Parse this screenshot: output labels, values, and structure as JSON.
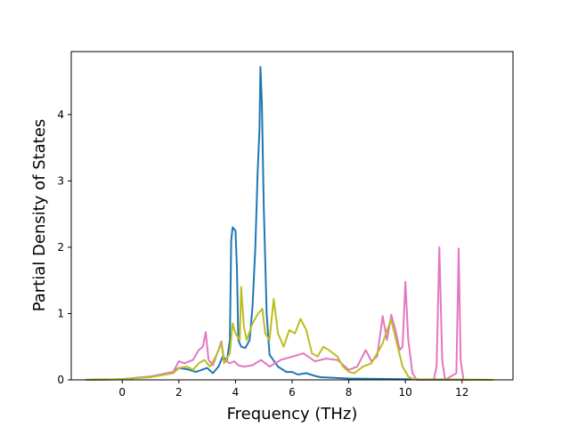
{
  "chart_data": {
    "type": "line",
    "title": "",
    "xlabel": "Frequency (THz)",
    "ylabel": "Partial Density of States",
    "xlim": [
      -1.8,
      13.8
    ],
    "ylim": [
      0,
      4.95
    ],
    "xticks": [
      0,
      2,
      4,
      6,
      8,
      10,
      12
    ],
    "yticks": [
      0,
      1,
      2,
      3,
      4
    ],
    "grid": false,
    "legend": "none",
    "series": [
      {
        "color": "#1f77b4",
        "points": [
          [
            -1.3,
            0
          ],
          [
            0,
            0.01
          ],
          [
            1,
            0.05
          ],
          [
            1.8,
            0.12
          ],
          [
            2.0,
            0.18
          ],
          [
            2.3,
            0.16
          ],
          [
            2.6,
            0.12
          ],
          [
            2.8,
            0.15
          ],
          [
            3.0,
            0.18
          ],
          [
            3.2,
            0.1
          ],
          [
            3.4,
            0.2
          ],
          [
            3.55,
            0.35
          ],
          [
            3.7,
            0.3
          ],
          [
            3.8,
            0.6
          ],
          [
            3.85,
            2.1
          ],
          [
            3.9,
            2.3
          ],
          [
            4.0,
            2.25
          ],
          [
            4.05,
            1.7
          ],
          [
            4.1,
            0.6
          ],
          [
            4.2,
            0.5
          ],
          [
            4.35,
            0.48
          ],
          [
            4.5,
            0.6
          ],
          [
            4.6,
            1.1
          ],
          [
            4.7,
            2.0
          ],
          [
            4.78,
            3.1
          ],
          [
            4.85,
            3.8
          ],
          [
            4.88,
            4.72
          ],
          [
            4.93,
            4.2
          ],
          [
            5.0,
            2.6
          ],
          [
            5.1,
            1.0
          ],
          [
            5.2,
            0.38
          ],
          [
            5.3,
            0.32
          ],
          [
            5.5,
            0.2
          ],
          [
            5.8,
            0.12
          ],
          [
            6.0,
            0.12
          ],
          [
            6.2,
            0.08
          ],
          [
            6.5,
            0.1
          ],
          [
            6.8,
            0.06
          ],
          [
            7.0,
            0.04
          ],
          [
            7.5,
            0.03
          ],
          [
            8,
            0.02
          ],
          [
            9,
            0.015
          ],
          [
            10,
            0.01
          ],
          [
            11,
            0.005
          ],
          [
            13.1,
            0
          ]
        ]
      },
      {
        "color": "#e377c2",
        "points": [
          [
            -1.3,
            0
          ],
          [
            0,
            0.01
          ],
          [
            1,
            0.05
          ],
          [
            1.8,
            0.12
          ],
          [
            2.0,
            0.28
          ],
          [
            2.2,
            0.25
          ],
          [
            2.5,
            0.3
          ],
          [
            2.7,
            0.45
          ],
          [
            2.85,
            0.5
          ],
          [
            2.95,
            0.72
          ],
          [
            3.05,
            0.3
          ],
          [
            3.2,
            0.22
          ],
          [
            3.4,
            0.45
          ],
          [
            3.5,
            0.58
          ],
          [
            3.6,
            0.3
          ],
          [
            3.8,
            0.25
          ],
          [
            3.95,
            0.28
          ],
          [
            4.1,
            0.22
          ],
          [
            4.3,
            0.2
          ],
          [
            4.6,
            0.22
          ],
          [
            4.9,
            0.3
          ],
          [
            5.2,
            0.2
          ],
          [
            5.6,
            0.3
          ],
          [
            6.0,
            0.35
          ],
          [
            6.4,
            0.4
          ],
          [
            6.8,
            0.28
          ],
          [
            7.2,
            0.32
          ],
          [
            7.6,
            0.3
          ],
          [
            8.0,
            0.15
          ],
          [
            8.3,
            0.2
          ],
          [
            8.6,
            0.45
          ],
          [
            8.8,
            0.28
          ],
          [
            9.0,
            0.35
          ],
          [
            9.2,
            0.96
          ],
          [
            9.35,
            0.6
          ],
          [
            9.5,
            0.98
          ],
          [
            9.65,
            0.75
          ],
          [
            9.8,
            0.45
          ],
          [
            9.9,
            0.5
          ],
          [
            10.0,
            1.48
          ],
          [
            10.1,
            0.6
          ],
          [
            10.25,
            0.1
          ],
          [
            10.4,
            0
          ],
          [
            11.0,
            0
          ],
          [
            11.1,
            0.2
          ],
          [
            11.2,
            2.0
          ],
          [
            11.3,
            0.3
          ],
          [
            11.4,
            0
          ],
          [
            11.8,
            0.1
          ],
          [
            11.88,
            1.98
          ],
          [
            11.95,
            0.3
          ],
          [
            12.05,
            0
          ],
          [
            13.1,
            0
          ]
        ]
      },
      {
        "color": "#bcbd22",
        "points": [
          [
            -1.3,
            0
          ],
          [
            0,
            0.01
          ],
          [
            1,
            0.04
          ],
          [
            1.8,
            0.1
          ],
          [
            2.0,
            0.18
          ],
          [
            2.3,
            0.2
          ],
          [
            2.5,
            0.15
          ],
          [
            2.7,
            0.25
          ],
          [
            2.9,
            0.3
          ],
          [
            3.1,
            0.2
          ],
          [
            3.3,
            0.35
          ],
          [
            3.5,
            0.55
          ],
          [
            3.6,
            0.25
          ],
          [
            3.8,
            0.4
          ],
          [
            3.9,
            0.85
          ],
          [
            4.0,
            0.7
          ],
          [
            4.15,
            0.6
          ],
          [
            4.2,
            1.4
          ],
          [
            4.3,
            0.8
          ],
          [
            4.4,
            0.6
          ],
          [
            4.6,
            0.85
          ],
          [
            4.8,
            1.0
          ],
          [
            4.95,
            1.07
          ],
          [
            5.05,
            0.7
          ],
          [
            5.2,
            0.6
          ],
          [
            5.35,
            1.22
          ],
          [
            5.5,
            0.7
          ],
          [
            5.7,
            0.5
          ],
          [
            5.9,
            0.75
          ],
          [
            6.1,
            0.7
          ],
          [
            6.3,
            0.92
          ],
          [
            6.5,
            0.75
          ],
          [
            6.7,
            0.4
          ],
          [
            6.9,
            0.35
          ],
          [
            7.1,
            0.5
          ],
          [
            7.3,
            0.45
          ],
          [
            7.6,
            0.35
          ],
          [
            7.8,
            0.2
          ],
          [
            8.0,
            0.12
          ],
          [
            8.2,
            0.1
          ],
          [
            8.5,
            0.2
          ],
          [
            8.8,
            0.25
          ],
          [
            9.0,
            0.4
          ],
          [
            9.2,
            0.55
          ],
          [
            9.35,
            0.75
          ],
          [
            9.5,
            0.9
          ],
          [
            9.7,
            0.55
          ],
          [
            9.9,
            0.2
          ],
          [
            10.1,
            0.05
          ],
          [
            10.3,
            0.01
          ],
          [
            11.0,
            0
          ],
          [
            13.1,
            0
          ]
        ]
      }
    ]
  }
}
